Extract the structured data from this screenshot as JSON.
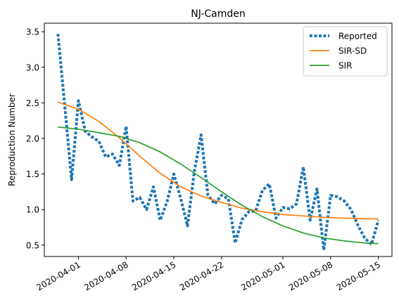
{
  "chart_data": {
    "type": "line",
    "title": "NJ-Camden",
    "xlabel": "",
    "ylabel": "Reproduction Number",
    "xlim": [
      "2020-03-27",
      "2020-05-17"
    ],
    "ylim": [
      0.34,
      3.62
    ],
    "grid": false,
    "legend_position": "top-right",
    "x_ticks": [
      "2020-04-01",
      "2020-04-08",
      "2020-04-15",
      "2020-04-22",
      "2020-05-01",
      "2020-05-08",
      "2020-05-15"
    ],
    "y_ticks": [
      0.5,
      1.0,
      1.5,
      2.0,
      2.5,
      3.0,
      3.5
    ],
    "series": [
      {
        "name": "Reported",
        "color": "#1f77b4",
        "style": "dotted",
        "points": [
          [
            "2020-03-29",
            3.47
          ],
          [
            "2020-03-30",
            2.45
          ],
          [
            "2020-03-31",
            1.42
          ],
          [
            "2020-04-01",
            2.53
          ],
          [
            "2020-04-02",
            2.1
          ],
          [
            "2020-04-03",
            2.02
          ],
          [
            "2020-04-04",
            1.96
          ],
          [
            "2020-04-05",
            1.74
          ],
          [
            "2020-04-06",
            1.78
          ],
          [
            "2020-04-07",
            1.62
          ],
          [
            "2020-04-08",
            2.17
          ],
          [
            "2020-04-09",
            1.12
          ],
          [
            "2020-04-10",
            1.17
          ],
          [
            "2020-04-11",
            1.0
          ],
          [
            "2020-04-12",
            1.32
          ],
          [
            "2020-04-13",
            0.85
          ],
          [
            "2020-04-14",
            1.11
          ],
          [
            "2020-04-15",
            1.5
          ],
          [
            "2020-04-16",
            1.16
          ],
          [
            "2020-04-17",
            0.77
          ],
          [
            "2020-04-18",
            1.53
          ],
          [
            "2020-04-19",
            2.05
          ],
          [
            "2020-04-20",
            1.2
          ],
          [
            "2020-04-21",
            1.08
          ],
          [
            "2020-04-22",
            1.2
          ],
          [
            "2020-04-23",
            1.15
          ],
          [
            "2020-04-24",
            0.53
          ],
          [
            "2020-04-25",
            0.86
          ],
          [
            "2020-04-26",
            0.97
          ],
          [
            "2020-04-27",
            0.98
          ],
          [
            "2020-04-28",
            1.27
          ],
          [
            "2020-04-29",
            1.36
          ],
          [
            "2020-04-30",
            0.88
          ],
          [
            "2020-05-01",
            1.03
          ],
          [
            "2020-05-02",
            1.01
          ],
          [
            "2020-05-03",
            1.08
          ],
          [
            "2020-05-04",
            1.6
          ],
          [
            "2020-05-05",
            0.85
          ],
          [
            "2020-05-06",
            1.29
          ],
          [
            "2020-05-07",
            0.43
          ],
          [
            "2020-05-08",
            1.2
          ],
          [
            "2020-05-09",
            1.18
          ],
          [
            "2020-05-10",
            1.12
          ],
          [
            "2020-05-11",
            1.0
          ],
          [
            "2020-05-12",
            0.78
          ],
          [
            "2020-05-13",
            0.6
          ],
          [
            "2020-05-14",
            0.51
          ],
          [
            "2020-05-15",
            0.85
          ]
        ]
      },
      {
        "name": "SIR-SD",
        "color": "#ff7f0e",
        "style": "solid",
        "points": [
          [
            "2020-03-29",
            2.51
          ],
          [
            "2020-04-01",
            2.41
          ],
          [
            "2020-04-04",
            2.24
          ],
          [
            "2020-04-07",
            2.01
          ],
          [
            "2020-04-10",
            1.75
          ],
          [
            "2020-04-13",
            1.51
          ],
          [
            "2020-04-16",
            1.32
          ],
          [
            "2020-04-19",
            1.19
          ],
          [
            "2020-04-22",
            1.1
          ],
          [
            "2020-04-25",
            1.02
          ],
          [
            "2020-04-28",
            0.97
          ],
          [
            "2020-05-01",
            0.93
          ],
          [
            "2020-05-04",
            0.91
          ],
          [
            "2020-05-07",
            0.89
          ],
          [
            "2020-05-10",
            0.88
          ],
          [
            "2020-05-13",
            0.87
          ],
          [
            "2020-05-15",
            0.87
          ]
        ]
      },
      {
        "name": "SIR",
        "color": "#2ca02c",
        "style": "solid",
        "points": [
          [
            "2020-03-29",
            2.16
          ],
          [
            "2020-04-01",
            2.13
          ],
          [
            "2020-04-04",
            2.08
          ],
          [
            "2020-04-07",
            2.03
          ],
          [
            "2020-04-10",
            1.94
          ],
          [
            "2020-04-13",
            1.81
          ],
          [
            "2020-04-16",
            1.64
          ],
          [
            "2020-04-19",
            1.45
          ],
          [
            "2020-04-22",
            1.25
          ],
          [
            "2020-04-25",
            1.06
          ],
          [
            "2020-04-28",
            0.9
          ],
          [
            "2020-05-01",
            0.77
          ],
          [
            "2020-05-04",
            0.67
          ],
          [
            "2020-05-07",
            0.6
          ],
          [
            "2020-05-10",
            0.56
          ],
          [
            "2020-05-13",
            0.53
          ],
          [
            "2020-05-15",
            0.52
          ]
        ]
      }
    ]
  }
}
